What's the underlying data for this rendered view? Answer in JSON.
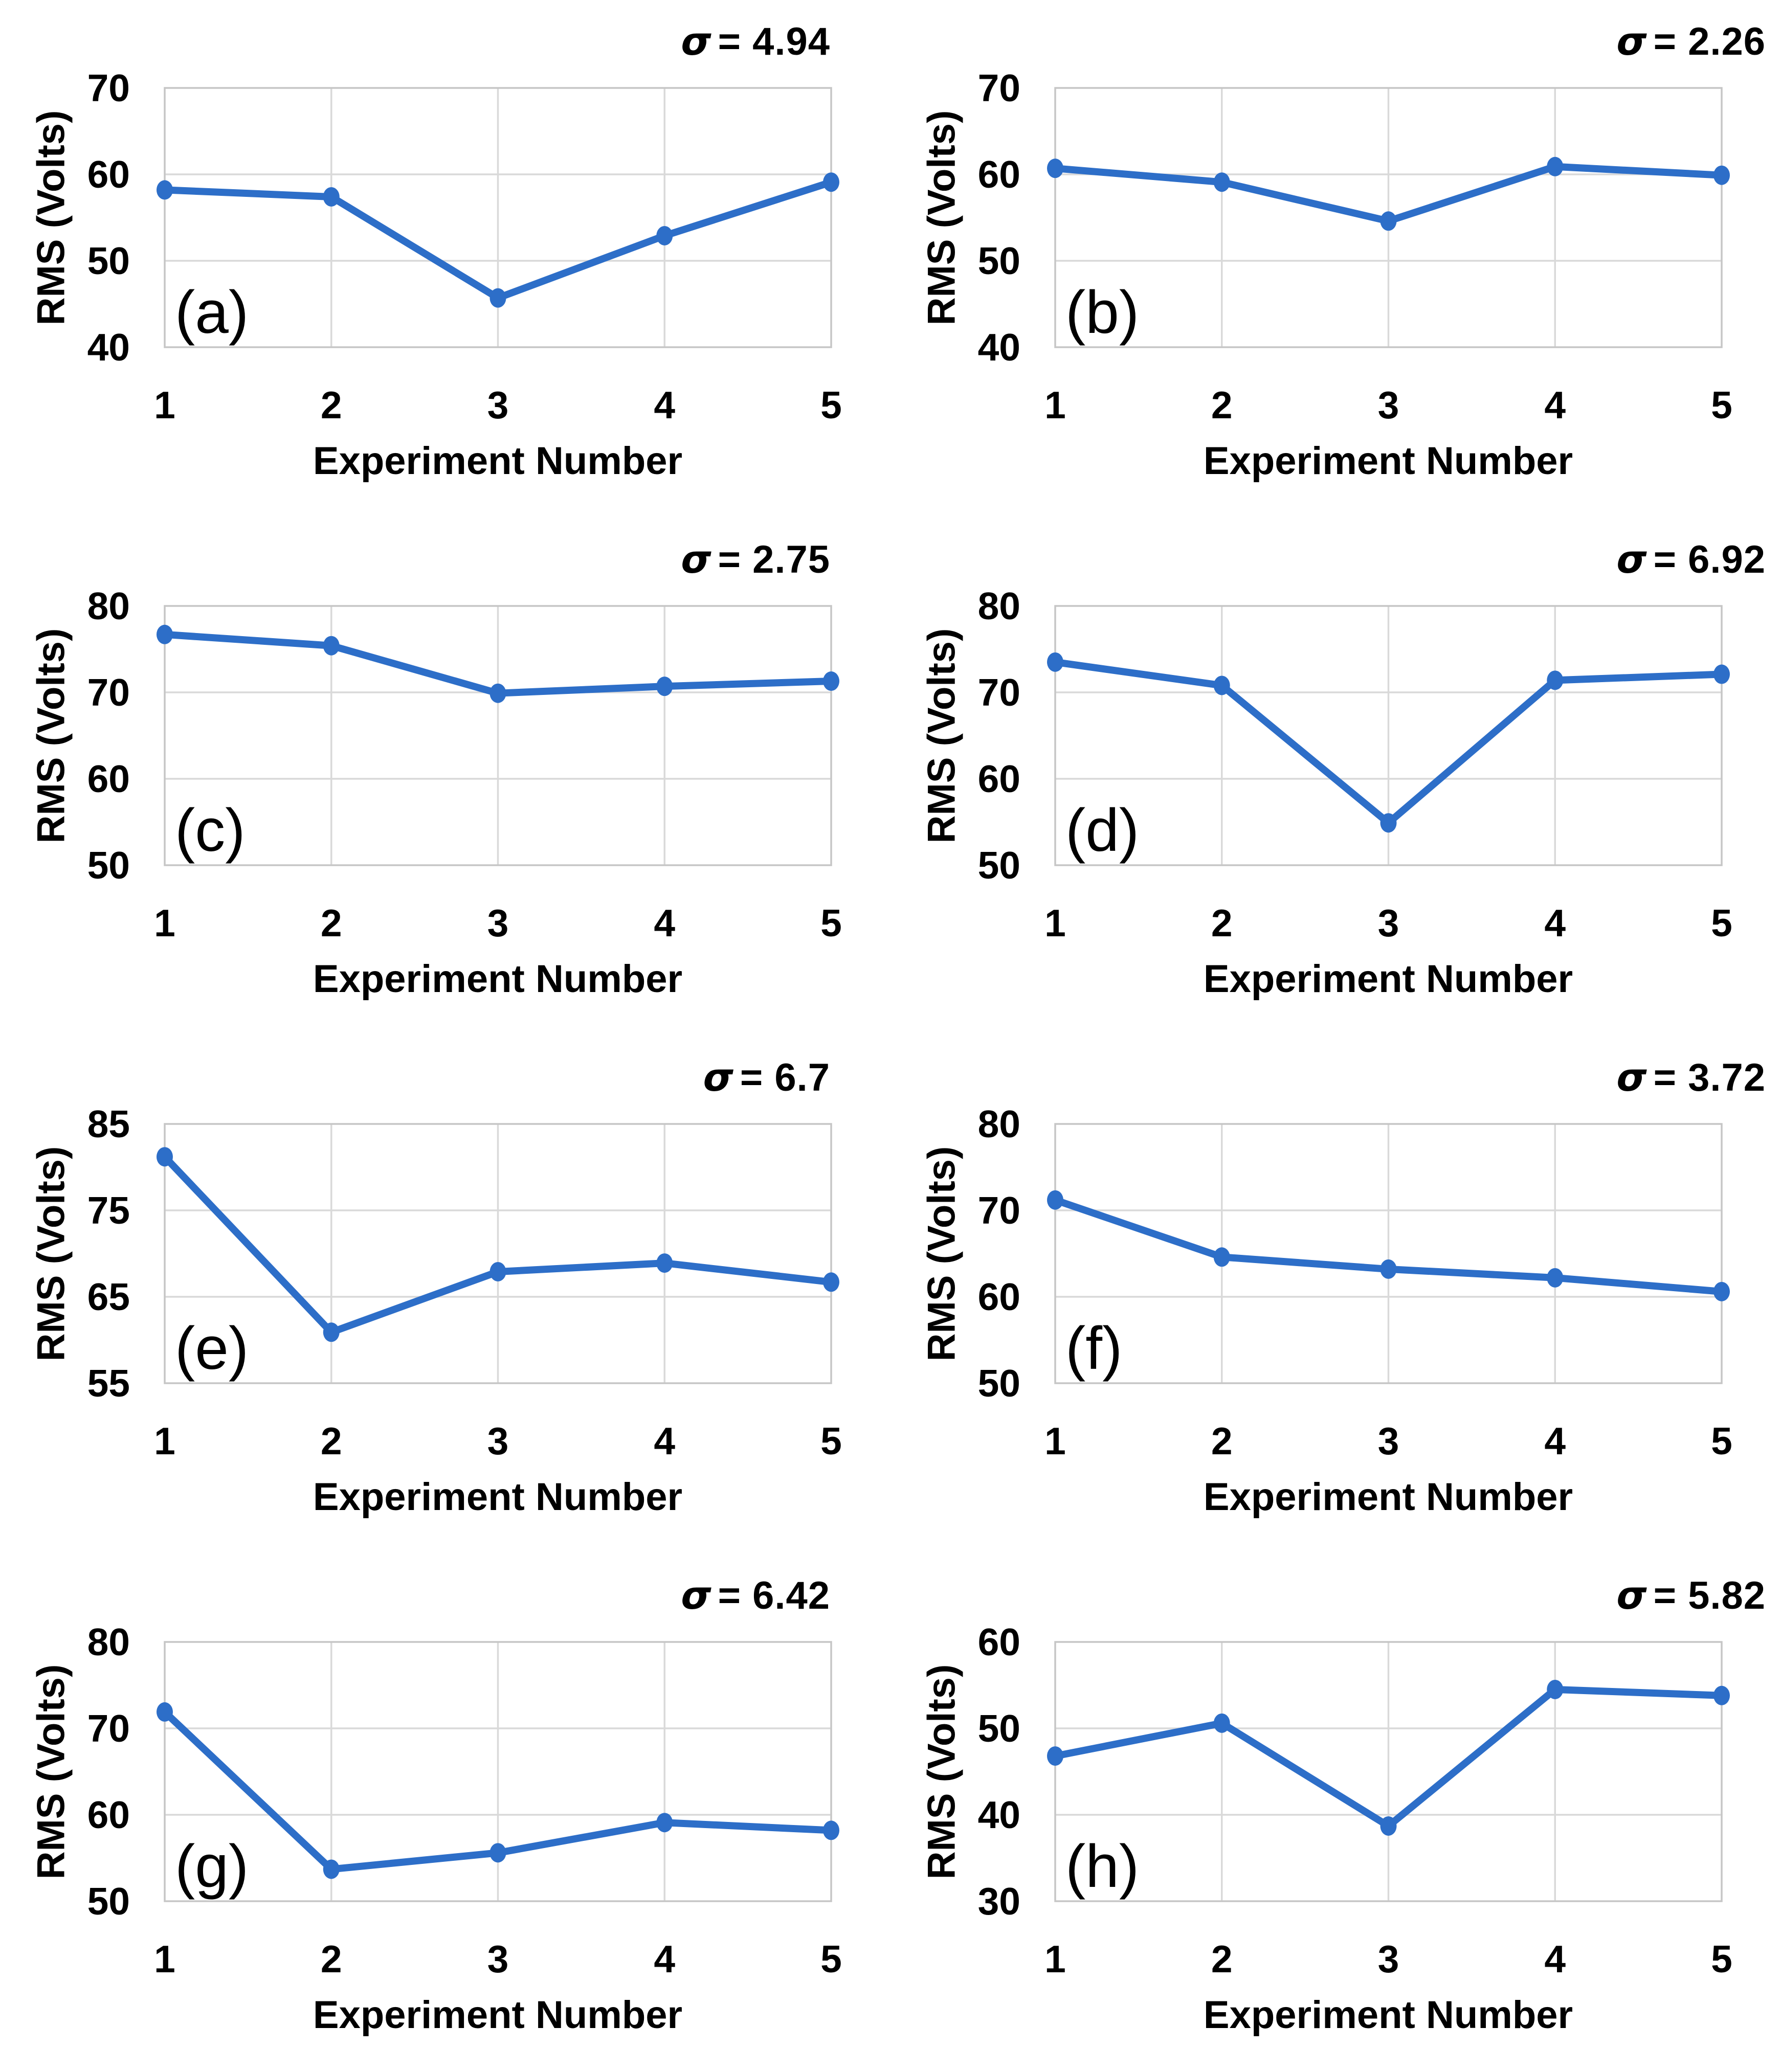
{
  "labels": {
    "ylabel": "RMS (Volts)",
    "xlabel": "Experiment Number",
    "sigma_symbol": "σ"
  },
  "style": {
    "line_color": "#2D6EC8",
    "grid_color": "#D9D9D9",
    "border_color": "#C6C6C6",
    "text_color": "#000000",
    "background": "#FFFFFF"
  },
  "chart_data": [
    {
      "type": "line",
      "panel": "(a)",
      "sigma": 4.94,
      "sigma_text": "= 4.94",
      "xlabel": "Experiment Number",
      "ylabel": "RMS (Volts)",
      "x": [
        1,
        2,
        3,
        4,
        5
      ],
      "y": [
        58.2,
        57.4,
        45.7,
        52.9,
        59.1
      ],
      "ylim": [
        40,
        70
      ],
      "yticks": [
        40,
        50,
        60,
        70
      ],
      "grid": true,
      "legend": "none"
    },
    {
      "type": "line",
      "panel": "(b)",
      "sigma": 2.26,
      "sigma_text": "= 2.26",
      "xlabel": "Experiment Number",
      "ylabel": "RMS (Volts)",
      "x": [
        1,
        2,
        3,
        4,
        5
      ],
      "y": [
        60.7,
        59.1,
        54.6,
        60.9,
        59.9
      ],
      "ylim": [
        40,
        70
      ],
      "yticks": [
        40,
        50,
        60,
        70
      ],
      "grid": true,
      "legend": "none"
    },
    {
      "type": "line",
      "panel": "(c)",
      "sigma": 2.75,
      "sigma_text": "= 2.75",
      "xlabel": "Experiment Number",
      "ylabel": "RMS (Volts)",
      "x": [
        1,
        2,
        3,
        4,
        5
      ],
      "y": [
        76.7,
        75.4,
        69.9,
        70.7,
        71.3
      ],
      "ylim": [
        50,
        80
      ],
      "yticks": [
        50,
        60,
        70,
        80
      ],
      "grid": true,
      "legend": "none"
    },
    {
      "type": "line",
      "panel": "(d)",
      "sigma": 6.92,
      "sigma_text": "= 6.92",
      "xlabel": "Experiment Number",
      "ylabel": "RMS (Volts)",
      "x": [
        1,
        2,
        3,
        4,
        5
      ],
      "y": [
        73.5,
        70.8,
        54.9,
        71.4,
        72.1
      ],
      "ylim": [
        50,
        80
      ],
      "yticks": [
        50,
        60,
        70,
        80
      ],
      "grid": true,
      "legend": "none"
    },
    {
      "type": "line",
      "panel": "(e)",
      "sigma": 6.7,
      "sigma_text": "= 6.7",
      "xlabel": "Experiment Number",
      "ylabel": "RMS (Volts)",
      "x": [
        1,
        2,
        3,
        4,
        5
      ],
      "y": [
        81.2,
        60.9,
        67.9,
        68.9,
        66.7
      ],
      "ylim": [
        55,
        85
      ],
      "yticks": [
        55,
        65,
        75,
        85
      ],
      "grid": true,
      "legend": "none"
    },
    {
      "type": "line",
      "panel": "(f)",
      "sigma": 3.72,
      "sigma_text": "= 3.72",
      "xlabel": "Experiment Number",
      "ylabel": "RMS (Volts)",
      "x": [
        1,
        2,
        3,
        4,
        5
      ],
      "y": [
        71.2,
        64.6,
        63.2,
        62.2,
        60.6
      ],
      "ylim": [
        50,
        80
      ],
      "yticks": [
        50,
        60,
        70,
        80
      ],
      "grid": true,
      "legend": "none"
    },
    {
      "type": "line",
      "panel": "(g)",
      "sigma": 6.42,
      "sigma_text": "= 6.42",
      "xlabel": "Experiment Number",
      "ylabel": "RMS (Volts)",
      "x": [
        1,
        2,
        3,
        4,
        5
      ],
      "y": [
        71.9,
        53.7,
        55.6,
        59.1,
        58.2
      ],
      "ylim": [
        50,
        80
      ],
      "yticks": [
        50,
        60,
        70,
        80
      ],
      "grid": true,
      "legend": "none"
    },
    {
      "type": "line",
      "panel": "(h)",
      "sigma": 5.82,
      "sigma_text": "= 5.82",
      "xlabel": "Experiment Number",
      "ylabel": "RMS (Volts)",
      "x": [
        1,
        2,
        3,
        4,
        5
      ],
      "y": [
        46.8,
        50.6,
        38.7,
        54.5,
        53.8
      ],
      "ylim": [
        30,
        60
      ],
      "yticks": [
        30,
        40,
        50,
        60
      ],
      "grid": true,
      "legend": "none"
    }
  ]
}
